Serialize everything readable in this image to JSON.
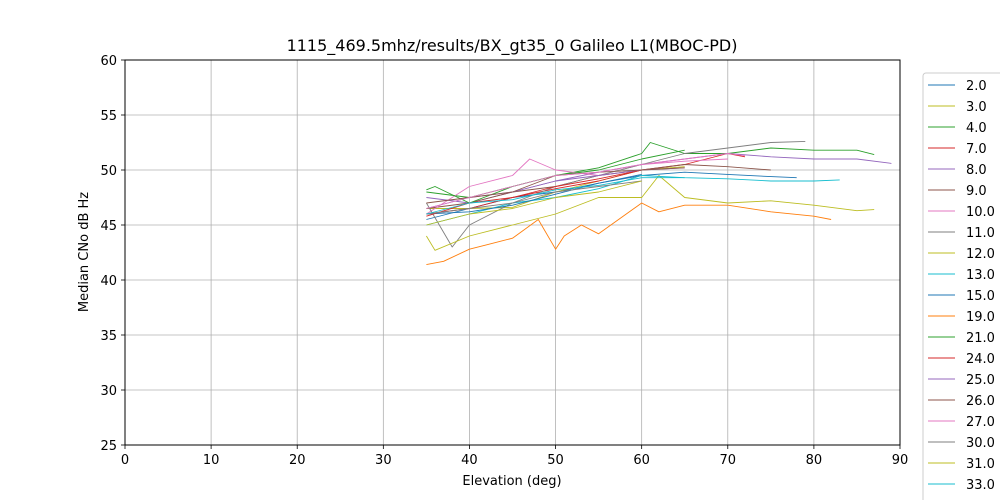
{
  "chart_data": {
    "type": "line",
    "title": "1115_469.5mhz/results/BX_gt35_0 Galileo L1(MBOC-PD)",
    "xlabel": "Elevation (deg)",
    "ylabel": "Median CNo dB Hz",
    "xlim": [
      0,
      90
    ],
    "ylim": [
      25,
      60
    ],
    "xticks": [
      0,
      10,
      20,
      30,
      40,
      50,
      60,
      70,
      80,
      90
    ],
    "yticks": [
      25,
      30,
      35,
      40,
      45,
      50,
      55,
      60
    ],
    "grid": true,
    "legend_position": "right, outside plot area",
    "series": [
      {
        "name": "2.0",
        "color": "#1f77b4",
        "x": [
          35,
          40,
          45,
          50,
          55,
          60,
          65,
          70,
          75,
          78
        ],
        "y": [
          45.5,
          46.5,
          47.5,
          48.0,
          48.8,
          49.5,
          49.8,
          49.6,
          49.4,
          49.3
        ]
      },
      {
        "name": "3.0",
        "color": "#bcbd22",
        "x": [
          35,
          40,
          45,
          50,
          55,
          60,
          65
        ],
        "y": [
          46.5,
          46.5,
          46.6,
          48.0,
          49.0,
          50.0,
          50.3
        ]
      },
      {
        "name": "4.0",
        "color": "#2ca02c",
        "x": [
          35,
          40,
          45,
          50,
          55,
          60,
          61,
          65,
          70,
          75,
          80,
          85,
          87
        ],
        "y": [
          48.0,
          47.5,
          48.5,
          49.5,
          50.2,
          51.5,
          52.5,
          51.5,
          51.5,
          52.0,
          51.8,
          51.8,
          51.4
        ]
      },
      {
        "name": "7.0",
        "color": "#d62728",
        "x": [
          35,
          40,
          45,
          50,
          55,
          60,
          65,
          70,
          72
        ],
        "y": [
          46.0,
          46.5,
          47.5,
          48.3,
          49.0,
          50.0,
          50.5,
          51.5,
          51.2
        ]
      },
      {
        "name": "8.0",
        "color": "#9467bd",
        "x": [
          35,
          40,
          45,
          50,
          55,
          60,
          65,
          70,
          75,
          80,
          85,
          89
        ],
        "y": [
          47.5,
          47.0,
          48.0,
          49.0,
          49.8,
          50.5,
          51.0,
          51.5,
          51.2,
          51.0,
          51.0,
          50.6
        ]
      },
      {
        "name": "9.0",
        "color": "#8c564b",
        "x": [
          35,
          40,
          45,
          50,
          55,
          60,
          65,
          70,
          75
        ],
        "y": [
          46.5,
          47.0,
          48.0,
          48.5,
          49.5,
          50.0,
          50.5,
          50.3,
          50.0
        ]
      },
      {
        "name": "10.0",
        "color": "#e377c2",
        "x": [
          35,
          40,
          45,
          47,
          50,
          55,
          60,
          65,
          70,
          72
        ],
        "y": [
          46.0,
          48.5,
          49.5,
          51.0,
          50.0,
          49.5,
          50.5,
          51.0,
          51.5,
          51.3
        ]
      },
      {
        "name": "11.0",
        "color": "#7f7f7f",
        "x": [
          35,
          38,
          40,
          45,
          50,
          55,
          60,
          65,
          70,
          75,
          79
        ],
        "y": [
          47.0,
          43.0,
          45.0,
          47.0,
          48.5,
          49.5,
          50.5,
          51.5,
          52.0,
          52.5,
          52.6
        ]
      },
      {
        "name": "12.0",
        "color": "#bcbd22",
        "x": [
          35,
          36,
          40,
          45,
          50,
          55,
          60,
          62,
          65,
          70,
          75,
          80,
          85,
          87
        ],
        "y": [
          44.0,
          42.7,
          44.0,
          45.0,
          46.0,
          47.5,
          47.5,
          49.5,
          47.5,
          47.0,
          47.2,
          46.8,
          46.3,
          46.4
        ]
      },
      {
        "name": "13.0",
        "color": "#17becf",
        "x": [
          35,
          40,
          45,
          50,
          55,
          60,
          65,
          70,
          75,
          80,
          83
        ],
        "y": [
          45.0,
          46.0,
          47.0,
          47.5,
          48.3,
          49.5,
          49.3,
          49.2,
          49.0,
          49.0,
          49.1
        ]
      },
      {
        "name": "15.0",
        "color": "#1f77b4",
        "x": [
          35,
          40,
          45,
          50,
          55,
          60
        ],
        "y": [
          46.0,
          46.2,
          46.8,
          47.8,
          48.8,
          49.6
        ]
      },
      {
        "name": "19.0",
        "color": "#ff7f0e",
        "x": [
          35,
          37,
          40,
          42,
          45,
          48,
          50,
          51,
          53,
          55,
          60,
          62,
          65,
          70,
          75,
          80,
          82
        ],
        "y": [
          41.4,
          41.7,
          42.8,
          43.2,
          43.8,
          45.5,
          42.8,
          44.0,
          45.0,
          44.2,
          47.0,
          46.2,
          46.8,
          46.8,
          46.2,
          45.8,
          45.5
        ]
      },
      {
        "name": "21.0",
        "color": "#2ca02c",
        "x": [
          35,
          36,
          40,
          45,
          50,
          55,
          60,
          65
        ],
        "y": [
          48.2,
          48.5,
          47.0,
          48.5,
          49.5,
          50.0,
          51.0,
          51.8
        ]
      },
      {
        "name": "24.0",
        "color": "#d62728",
        "x": [
          35,
          40,
          45,
          50,
          55,
          60
        ],
        "y": [
          45.8,
          47.0,
          47.5,
          48.5,
          49.2,
          50.0
        ]
      },
      {
        "name": "25.0",
        "color": "#9467bd",
        "x": [
          35,
          40,
          45,
          50,
          55,
          60,
          65
        ],
        "y": [
          46.5,
          47.5,
          48.0,
          49.0,
          49.5,
          50.0,
          50.2
        ]
      },
      {
        "name": "26.0",
        "color": "#8c564b",
        "x": [
          35,
          40,
          45,
          50,
          55,
          60,
          65
        ],
        "y": [
          47.0,
          47.5,
          48.0,
          49.5,
          49.8,
          50.0,
          50.2
        ]
      },
      {
        "name": "27.0",
        "color": "#e377c2",
        "x": [
          35,
          40,
          45,
          50,
          55,
          60,
          65,
          70
        ],
        "y": [
          46.5,
          47.5,
          48.5,
          49.5,
          49.8,
          50.5,
          50.8,
          51.0
        ]
      },
      {
        "name": "30.0",
        "color": "#7f7f7f",
        "x": [
          35,
          40,
          45,
          50,
          55,
          60
        ],
        "y": [
          46.0,
          46.5,
          47.0,
          48.0,
          48.5,
          49.0
        ]
      },
      {
        "name": "31.0",
        "color": "#bcbd22",
        "x": [
          35,
          40,
          45,
          50,
          55,
          60
        ],
        "y": [
          45.0,
          46.0,
          46.5,
          47.5,
          48.0,
          49.0
        ]
      },
      {
        "name": "33.0",
        "color": "#17becf",
        "x": [
          35,
          40,
          45,
          50,
          55,
          60,
          65
        ],
        "y": [
          46.0,
          47.0,
          47.3,
          48.2,
          48.6,
          49.3,
          49.3
        ]
      }
    ],
    "legend_items_hidden_below_edge": 1
  }
}
